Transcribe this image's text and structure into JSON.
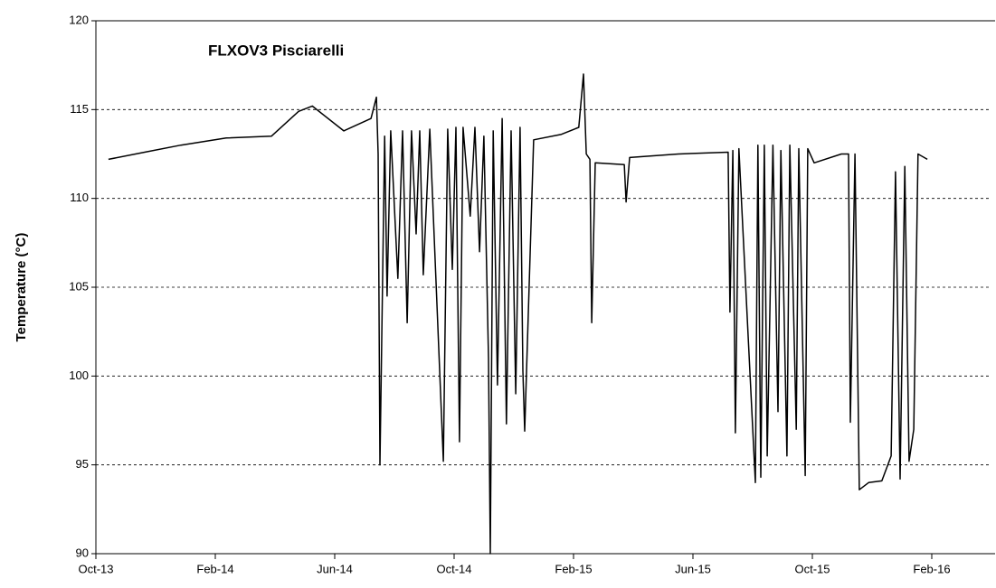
{
  "chart_data": {
    "type": "line",
    "title": "FLXOV3 Pisciarelli",
    "y_label": "Temperature (°C)",
    "xlim": [
      2013.75,
      2016.25
    ],
    "ylim": [
      90,
      120
    ],
    "xticks": [
      {
        "value": 2013.75,
        "label": "Oct-13"
      },
      {
        "value": 2014.0833,
        "label": "Feb-14"
      },
      {
        "value": 2014.4167,
        "label": "Jun-14"
      },
      {
        "value": 2014.75,
        "label": "Oct-14"
      },
      {
        "value": 2015.0833,
        "label": "Feb-15"
      },
      {
        "value": 2015.4167,
        "label": "Jun-15"
      },
      {
        "value": 2015.75,
        "label": "Oct-15"
      },
      {
        "value": 2016.0833,
        "label": "Feb-16"
      }
    ],
    "yticks": [
      90,
      95,
      100,
      105,
      110,
      115,
      120
    ],
    "grid": true,
    "series": [
      {
        "color": "#000000",
        "x": [
          2013.785,
          2013.886,
          2013.987,
          2014.114,
          2014.24,
          2014.316,
          2014.354,
          2014.442,
          2014.518,
          2014.533,
          2014.538,
          2014.543,
          2014.556,
          2014.563,
          2014.573,
          2014.593,
          2014.606,
          2014.619,
          2014.631,
          2014.644,
          2014.654,
          2014.664,
          2014.682,
          2014.72,
          2014.732,
          2014.745,
          2014.755,
          2014.765,
          2014.775,
          2014.795,
          2014.808,
          2014.821,
          2014.833,
          2014.846,
          2014.851,
          2014.859,
          2014.871,
          2014.884,
          2014.896,
          2014.909,
          2014.922,
          2014.934,
          2014.942,
          2014.947,
          2014.972,
          2015.048,
          2015.098,
          2015.111,
          2015.119,
          2015.129,
          2015.134,
          2015.144,
          2015.225,
          2015.23,
          2015.24,
          2015.376,
          2015.515,
          2015.52,
          2015.528,
          2015.535,
          2015.545,
          2015.591,
          2015.598,
          2015.606,
          2015.616,
          2015.624,
          2015.64,
          2015.654,
          2015.662,
          2015.679,
          2015.687,
          2015.705,
          2015.712,
          2015.73,
          2015.737,
          2015.755,
          2015.831,
          2015.851,
          2015.856,
          2015.869,
          2015.881,
          2015.907,
          2015.944,
          2015.97,
          2015.982,
          2015.995,
          2016.008,
          2016.02,
          2016.033,
          2016.045,
          2016.071
        ],
        "values": [
          112.2,
          112.6,
          113.0,
          113.4,
          113.5,
          114.9,
          115.2,
          113.8,
          114.5,
          115.7,
          112.5,
          95.0,
          113.5,
          104.5,
          113.8,
          105.5,
          113.8,
          103.0,
          113.8,
          108.0,
          113.8,
          105.7,
          113.9,
          95.2,
          113.9,
          106.0,
          114.0,
          96.3,
          114.0,
          109.0,
          114.0,
          107.0,
          113.5,
          101.0,
          90.0,
          113.8,
          99.5,
          114.5,
          97.3,
          113.8,
          99.0,
          114.0,
          100.3,
          96.9,
          113.3,
          113.6,
          114.0,
          117.0,
          112.5,
          112.2,
          103.0,
          112.0,
          111.9,
          109.8,
          112.3,
          112.5,
          112.6,
          103.6,
          112.7,
          96.8,
          112.8,
          94.0,
          113.0,
          94.3,
          113.0,
          95.5,
          113.0,
          98.0,
          112.7,
          95.5,
          113.0,
          97.0,
          112.8,
          94.4,
          112.8,
          112.0,
          112.5,
          112.5,
          97.4,
          112.5,
          93.6,
          94.0,
          94.1,
          95.5,
          111.5,
          94.2,
          111.8,
          95.2,
          97.0,
          112.5,
          112.2
        ]
      }
    ]
  }
}
